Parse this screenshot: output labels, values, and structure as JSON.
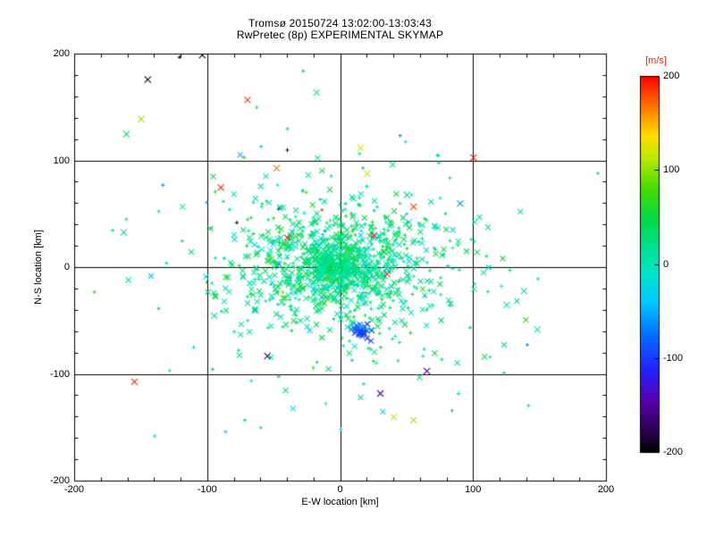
{
  "chart_data": {
    "type": "scatter",
    "title_line1": "Tromsø 20150724 13:02:00-13:03:43",
    "title_line2": "RwPretec (8p) EXPERIMENTAL SKYMAP",
    "xlabel": "E-W location [km]",
    "ylabel": "N-S location [km]",
    "xlim": [
      -200,
      200
    ],
    "ylim": [
      -200,
      200
    ],
    "xticks": [
      -200,
      -100,
      0,
      100,
      200
    ],
    "yticks": [
      -200,
      -100,
      0,
      100,
      200
    ],
    "grid_lines": [
      -100,
      0,
      100
    ],
    "minor_tick_step": 20,
    "grid": true,
    "legend_position": "none",
    "colorbar": {
      "label": "[m/s]",
      "label_color": "#ee2200",
      "min": -200,
      "max": 200,
      "ticks": [
        200,
        100,
        0,
        -100,
        -200
      ]
    },
    "colormap_stops": [
      [
        0.0,
        "#000000"
      ],
      [
        0.06,
        "#2b0055"
      ],
      [
        0.14,
        "#5a00b0"
      ],
      [
        0.22,
        "#2222ff"
      ],
      [
        0.32,
        "#0077ff"
      ],
      [
        0.4,
        "#00c8ff"
      ],
      [
        0.48,
        "#00e6c8"
      ],
      [
        0.55,
        "#00e08c"
      ],
      [
        0.62,
        "#00d945"
      ],
      [
        0.7,
        "#44dd00"
      ],
      [
        0.78,
        "#b8e800"
      ],
      [
        0.84,
        "#ffe000"
      ],
      [
        0.9,
        "#ff9000"
      ],
      [
        1.0,
        "#ff0000"
      ]
    ],
    "clusters": [
      {
        "marker": "x",
        "size": 3,
        "count": 150,
        "cx": -4,
        "cy": 2,
        "sx": 10,
        "sy": 8,
        "v_mean": 25,
        "v_sd": 18,
        "seed": 11
      },
      {
        "marker": "x",
        "size": 3,
        "count": 420,
        "cx": -2,
        "cy": 2,
        "sx": 27,
        "sy": 22,
        "v_mean": 20,
        "v_sd": 22,
        "seed": 12
      },
      {
        "marker": "+",
        "size": 2,
        "count": 330,
        "cx": 0,
        "cy": 0,
        "sx": 38,
        "sy": 32,
        "v_mean": 28,
        "v_sd": 20,
        "seed": 13
      },
      {
        "marker": "x",
        "size": 3,
        "count": 230,
        "cx": 4,
        "cy": -8,
        "sx": 60,
        "sy": 46,
        "v_mean": 15,
        "v_sd": 25,
        "seed": 14
      },
      {
        "marker": "+",
        "size": 2,
        "count": 110,
        "cx": 0,
        "cy": -5,
        "sx": 92,
        "sy": 72,
        "v_mean": 15,
        "v_sd": 35,
        "seed": 15
      },
      {
        "marker": "x",
        "size": 3,
        "count": 30,
        "cx": 16,
        "cy": -60,
        "sx": 4,
        "sy": 4,
        "v_mean": -95,
        "v_sd": 18,
        "seed": 16
      }
    ],
    "outliers_xyvm": [
      [
        -145,
        176,
        -195,
        "x"
      ],
      [
        -121,
        197,
        -200,
        "+"
      ],
      [
        -104,
        199,
        -200,
        "x"
      ],
      [
        -70,
        157,
        185,
        "x"
      ],
      [
        -150,
        139,
        105,
        "x"
      ],
      [
        -161,
        125,
        35,
        "x"
      ],
      [
        -63,
        150,
        40,
        "+"
      ],
      [
        -28,
        184,
        25,
        "+"
      ],
      [
        -18,
        164,
        5,
        "x"
      ],
      [
        -40,
        130,
        15,
        "+"
      ],
      [
        -90,
        75,
        190,
        "x"
      ],
      [
        -163,
        33,
        30,
        "x"
      ],
      [
        100,
        103,
        195,
        "x"
      ],
      [
        -155,
        -107,
        190,
        "x"
      ],
      [
        -40,
        110,
        -185,
        "+"
      ],
      [
        -78,
        42,
        -190,
        "+"
      ],
      [
        20,
        88,
        120,
        "x"
      ],
      [
        -48,
        93,
        170,
        "x"
      ],
      [
        15,
        112,
        125,
        "x"
      ],
      [
        25,
        30,
        190,
        "x"
      ],
      [
        -40,
        28,
        195,
        "x"
      ],
      [
        -14,
        54,
        185,
        "+"
      ],
      [
        35,
        -6,
        190,
        "x"
      ],
      [
        55,
        57,
        185,
        "x"
      ],
      [
        65,
        -97,
        -160,
        "x"
      ],
      [
        -55,
        -83,
        -175,
        "x"
      ],
      [
        30,
        -118,
        -145,
        "x"
      ],
      [
        40,
        -140,
        115,
        "x"
      ],
      [
        55,
        -143,
        105,
        "x"
      ],
      [
        125,
        -35,
        5,
        "x"
      ],
      [
        138,
        -22,
        8,
        "x"
      ],
      [
        148,
        -58,
        2,
        "x"
      ],
      [
        -95,
        -45,
        30,
        "x"
      ],
      [
        -80,
        -60,
        28,
        "+"
      ],
      [
        -72,
        -143,
        25,
        "+"
      ],
      [
        -60,
        -150,
        20,
        "+"
      ],
      [
        90,
        60,
        -60,
        "x"
      ],
      [
        50,
        68,
        15,
        "x"
      ]
    ]
  }
}
